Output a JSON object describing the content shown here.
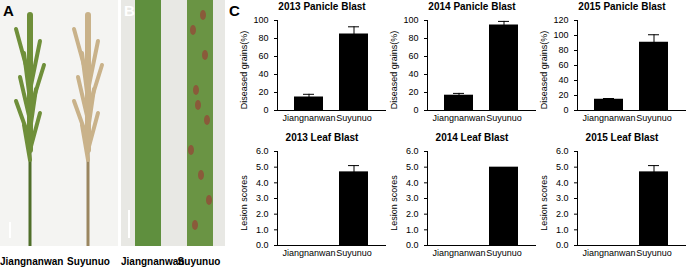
{
  "figure": {
    "panels": [
      {
        "label": "A",
        "captions": [
          "Jiangnanwan",
          "Suyunuo"
        ]
      },
      {
        "label": "B",
        "captions": [
          "Jiangnanwan",
          "Suyunuo"
        ]
      },
      {
        "label": "C"
      }
    ]
  },
  "chart_data": [
    {
      "type": "bar",
      "title": "2013 Panicle Blast",
      "y_label": "Diseased grains(%)",
      "categories": [
        "Jiangnanwan",
        "Suyunuo"
      ],
      "values": [
        15,
        85
      ],
      "error": [
        3,
        8
      ],
      "color": "#000000",
      "ylim": [
        0,
        100
      ],
      "yticks": [
        0,
        20,
        40,
        60,
        80,
        100
      ]
    },
    {
      "type": "bar",
      "title": "2014 Panicle Blast",
      "y_label": "Diseased grains(%)",
      "categories": [
        "Jiangnanwan",
        "Suyunuo"
      ],
      "values": [
        17,
        95
      ],
      "error": [
        2,
        4
      ],
      "color": "#000000",
      "ylim": [
        0,
        100
      ],
      "yticks": [
        0,
        20,
        40,
        60,
        80,
        100
      ]
    },
    {
      "type": "bar",
      "title": "2015 Panicle Blast",
      "y_label": "Diseased grains(%)",
      "categories": [
        "Jiangnanwan",
        "Suyunuo"
      ],
      "values": [
        15,
        91
      ],
      "error": [
        1,
        10
      ],
      "color": "#000000",
      "ylim": [
        0,
        120
      ],
      "yticks": [
        0,
        20,
        40,
        60,
        80,
        100,
        120
      ]
    },
    {
      "type": "bar",
      "title": "2013 Leaf Blast",
      "y_label": "Lesion scores",
      "categories": [
        "Jiangnanwan",
        "Suyunuo"
      ],
      "values": [
        0,
        4.7
      ],
      "error": [
        0,
        0.4
      ],
      "color": "#000000",
      "ylim": [
        0,
        6
      ],
      "yticks": [
        0,
        1,
        2,
        3,
        4,
        5,
        6
      ]
    },
    {
      "type": "bar",
      "title": "2014 Leaf Blast",
      "y_label": "Lesion scores",
      "categories": [
        "Jiangnanwan",
        "Suyunuo"
      ],
      "values": [
        0,
        5
      ],
      "error": [
        0,
        0
      ],
      "color": "#000000",
      "ylim": [
        0,
        6
      ],
      "yticks": [
        0,
        1,
        2,
        3,
        4,
        5,
        6
      ]
    },
    {
      "type": "bar",
      "title": "2015 Leaf Blast",
      "y_label": "Lesion scores",
      "categories": [
        "Jiangnanwan",
        "Suyunuo"
      ],
      "values": [
        0,
        4.7
      ],
      "error": [
        0,
        0.4
      ],
      "color": "#000000",
      "ylim": [
        0,
        6
      ],
      "yticks": [
        0,
        1,
        2,
        3,
        4,
        5,
        6
      ]
    }
  ]
}
